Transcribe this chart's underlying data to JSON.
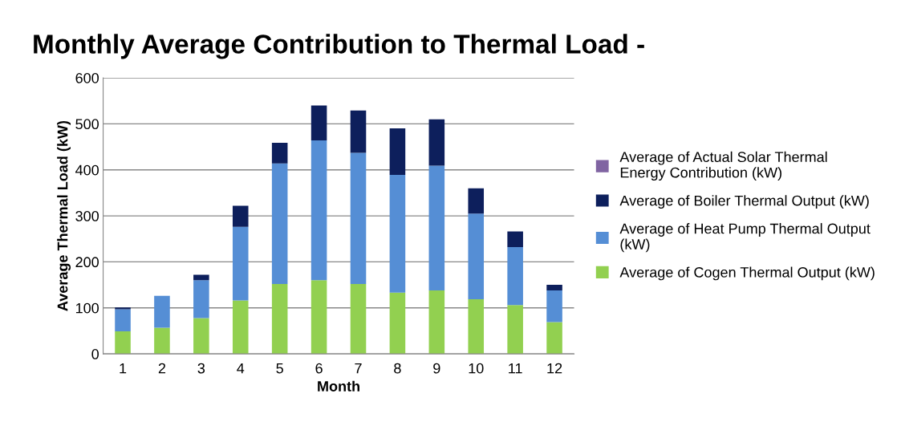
{
  "chart_data": {
    "type": "bar",
    "stacked": true,
    "title": "Monthly Average Contribution to Thermal Load -",
    "xlabel": "Month",
    "ylabel": "Average Thermal Load (kW)",
    "categories": [
      "1",
      "2",
      "3",
      "4",
      "5",
      "6",
      "7",
      "8",
      "9",
      "10",
      "11",
      "12"
    ],
    "series": [
      {
        "name": "Average of Cogen Thermal Output (kW)",
        "color": "#92d050",
        "values": [
          49,
          57,
          78,
          116,
          152,
          160,
          152,
          133,
          138,
          119,
          106,
          69
        ]
      },
      {
        "name": "Average of Heat Pump Thermal Output (kW)",
        "color": "#558ed5",
        "values": [
          48,
          69,
          82,
          160,
          262,
          304,
          285,
          256,
          271,
          186,
          126,
          69
        ]
      },
      {
        "name": "Average of Boiler Thermal Output (kW)",
        "color": "#0d1f5c",
        "values": [
          4,
          0,
          12,
          46,
          45,
          76,
          92,
          101,
          101,
          55,
          34,
          12
        ]
      },
      {
        "name": "Average of Actual Solar Thermal Energy Contribution (kW)",
        "color": "#8064a2",
        "values": [
          0,
          0,
          0,
          0,
          0,
          0,
          0,
          0,
          0,
          0,
          0,
          0
        ]
      }
    ],
    "ylim": [
      0,
      600
    ],
    "yticks": [
      0,
      100,
      200,
      300,
      400,
      500,
      600
    ],
    "grid": "y",
    "legend": "right"
  }
}
